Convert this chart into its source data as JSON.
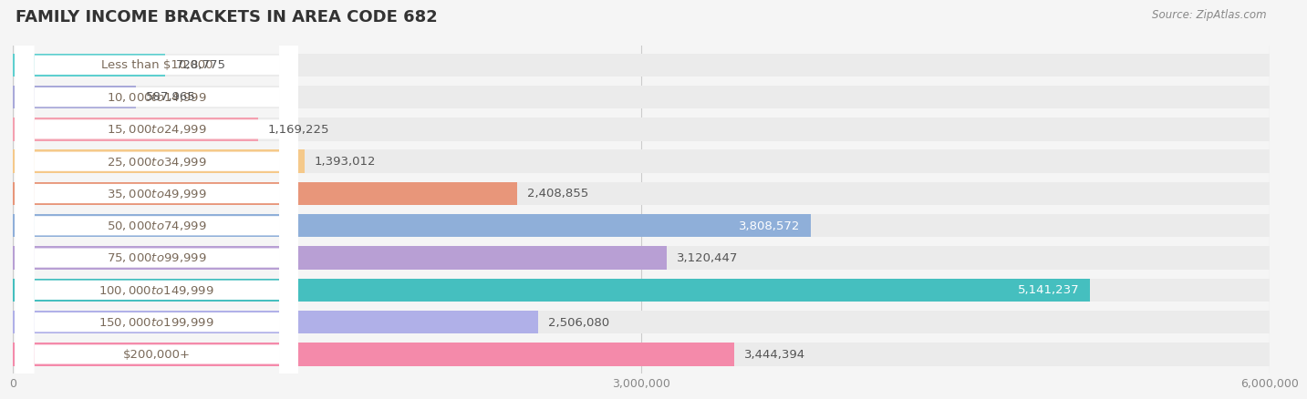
{
  "title": "FAMILY INCOME BRACKETS IN AREA CODE 682",
  "source": "Source: ZipAtlas.com",
  "categories": [
    "Less than $10,000",
    "$10,000 to $14,999",
    "$15,000 to $24,999",
    "$25,000 to $34,999",
    "$35,000 to $49,999",
    "$50,000 to $74,999",
    "$75,000 to $99,999",
    "$100,000 to $149,999",
    "$150,000 to $199,999",
    "$200,000+"
  ],
  "values": [
    728775,
    587965,
    1169225,
    1393012,
    2408855,
    3808572,
    3120447,
    5141237,
    2506080,
    3444394
  ],
  "bar_colors": [
    "#5ecfcf",
    "#a9a9d9",
    "#f4a0b0",
    "#f5c98a",
    "#e8967a",
    "#8fafd9",
    "#b89fd4",
    "#45bfbf",
    "#b0b0e8",
    "#f48aaa"
  ],
  "label_colors": [
    "#555555",
    "#555555",
    "#555555",
    "#555555",
    "#555555",
    "#ffffff",
    "#555555",
    "#ffffff",
    "#555555",
    "#555555"
  ],
  "value_labels": [
    "728,775",
    "587,965",
    "1,169,225",
    "1,393,012",
    "2,408,855",
    "3,808,572",
    "3,120,447",
    "5,141,237",
    "2,506,080",
    "3,444,394"
  ],
  "xlim": [
    0,
    6000000
  ],
  "xticks": [
    0,
    3000000,
    6000000
  ],
  "xtick_labels": [
    "0",
    "3,000,000",
    "6,000,000"
  ],
  "background_color": "#f5f5f5",
  "bar_background_color": "#ebebeb",
  "title_fontsize": 13,
  "bar_height": 0.72,
  "ylabel_fontsize": 9.5
}
